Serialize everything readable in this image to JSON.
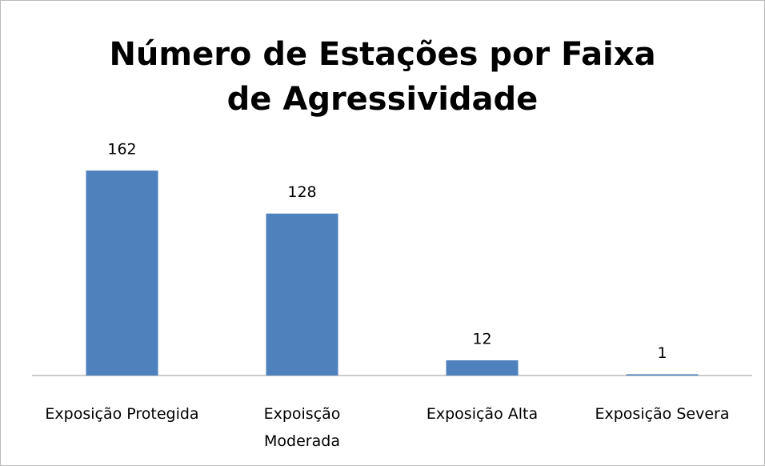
{
  "chart_data": {
    "type": "bar",
    "title": "Número de Estações por Faixa de Agressividade",
    "categories": [
      "Exposição Protegida",
      "Expoisção Moderada",
      "Exposição Alta",
      "Exposição Severa"
    ],
    "values": [
      162,
      128,
      12,
      1
    ],
    "color": "#4f81bd"
  }
}
